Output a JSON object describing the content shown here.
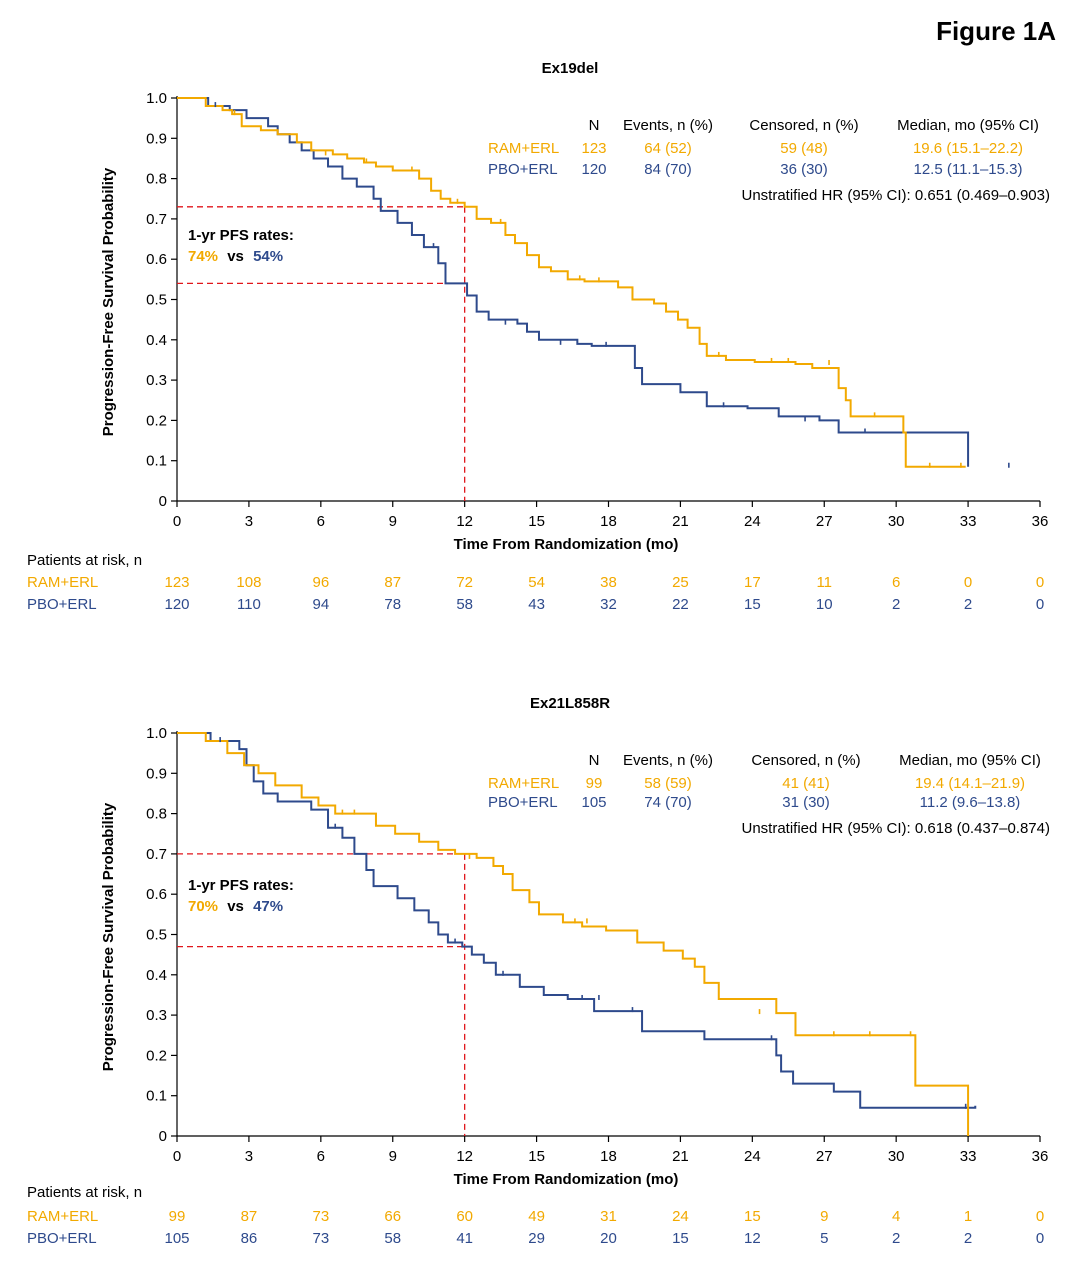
{
  "figure_label": "Figure 1A",
  "colors": {
    "ram": "#F2A900",
    "pbo": "#2E4A8C",
    "ref": "#E0161B",
    "axis": "#000000"
  },
  "common": {
    "ylabel": "Progression-Free Survival Probability",
    "xlabel": "Time From Randomization (mo)",
    "risk_title": "Patients at risk, n",
    "pfs_title": "1-yr PFS rates:",
    "vs": "vs",
    "legend_headers": {
      "n": "N",
      "events": "Events, n (%)",
      "censored": "Censored, n (%)",
      "median": "Median, mo (95% CI)"
    }
  },
  "chart_data": [
    {
      "type": "line",
      "title": "Ex19del",
      "xlim": [
        0,
        36
      ],
      "ylim": [
        0,
        1
      ],
      "x_ticks": [
        "0",
        "3",
        "6",
        "9",
        "12",
        "15",
        "18",
        "21",
        "24",
        "27",
        "30",
        "33",
        "36"
      ],
      "y_ticks": [
        "0",
        "0.1",
        "0.2",
        "0.3",
        "0.4",
        "0.5",
        "0.6",
        "0.7",
        "0.8",
        "0.9",
        "1.0"
      ],
      "ref_time": 12,
      "pfs_rates": {
        "ram": "74%",
        "pbo": "54%"
      },
      "hr_text": "Unstratified HR (95% CI): 0.651 (0.469–0.903)",
      "series": [
        {
          "name": "RAM+ERL",
          "n": "123",
          "events": "64 (52)",
          "censored": "59 (48)",
          "median": "19.6 (15.1–22.2)",
          "at_risk": [
            "123",
            "108",
            "96",
            "87",
            "72",
            "54",
            "38",
            "25",
            "17",
            "11",
            "6",
            "0",
            "0"
          ],
          "x": [
            0,
            1.2,
            1.9,
            2.3,
            2.7,
            3.5,
            4.2,
            5.0,
            5.6,
            6.5,
            7.1,
            7.8,
            8.3,
            9.0,
            10.1,
            10.6,
            11.0,
            11.4,
            12.0,
            12.5,
            13.1,
            13.7,
            14.1,
            14.6,
            15.1,
            15.6,
            16.3,
            17.0,
            18.4,
            19.0,
            19.9,
            20.4,
            20.9,
            21.3,
            21.8,
            22.1,
            22.9,
            24.1,
            25.8,
            26.5,
            27.6,
            27.9,
            28.1,
            30.3,
            30.4,
            32.9
          ],
          "y": [
            1.0,
            0.98,
            0.97,
            0.96,
            0.93,
            0.92,
            0.91,
            0.89,
            0.87,
            0.86,
            0.85,
            0.84,
            0.83,
            0.82,
            0.8,
            0.77,
            0.75,
            0.74,
            0.73,
            0.7,
            0.69,
            0.66,
            0.64,
            0.61,
            0.58,
            0.57,
            0.55,
            0.545,
            0.53,
            0.5,
            0.49,
            0.47,
            0.45,
            0.43,
            0.39,
            0.36,
            0.35,
            0.345,
            0.34,
            0.33,
            0.28,
            0.25,
            0.21,
            0.17,
            0.085,
            0.085
          ],
          "censor_x": [
            2.4,
            6.2,
            7.9,
            9.8,
            11.7,
            13.5,
            16.8,
            17.6,
            22.6,
            24.8,
            25.5,
            27.2,
            29.1,
            31.4,
            32.7
          ],
          "censor_y": [
            0.96,
            0.86,
            0.84,
            0.82,
            0.74,
            0.69,
            0.55,
            0.545,
            0.36,
            0.345,
            0.345,
            0.34,
            0.21,
            0.085,
            0.085
          ]
        },
        {
          "name": "PBO+ERL",
          "n": "120",
          "events": "84 (70)",
          "censored": "36 (30)",
          "median": "12.5 (11.1–15.3)",
          "at_risk": [
            "120",
            "110",
            "94",
            "78",
            "58",
            "43",
            "32",
            "22",
            "15",
            "10",
            "2",
            "2",
            "0"
          ],
          "x": [
            0,
            1.3,
            2.2,
            2.9,
            3.8,
            4.2,
            4.7,
            5.2,
            5.7,
            6.3,
            6.9,
            7.5,
            8.2,
            8.5,
            9.2,
            9.8,
            10.3,
            10.9,
            11.2,
            12.1,
            12.5,
            13.0,
            14.2,
            14.6,
            15.1,
            16.7,
            17.3,
            19.1,
            19.4,
            21.0,
            22.1,
            23.8,
            25.1,
            26.8,
            27.6,
            33.0
          ],
          "y": [
            1.0,
            0.98,
            0.97,
            0.95,
            0.93,
            0.91,
            0.89,
            0.87,
            0.85,
            0.83,
            0.8,
            0.78,
            0.75,
            0.72,
            0.69,
            0.66,
            0.63,
            0.59,
            0.54,
            0.51,
            0.47,
            0.45,
            0.44,
            0.42,
            0.4,
            0.39,
            0.385,
            0.33,
            0.29,
            0.27,
            0.235,
            0.23,
            0.21,
            0.2,
            0.17,
            0.085
          ],
          "censor_x": [
            1.6,
            10.7,
            13.7,
            16.0,
            17.9,
            22.8,
            26.2,
            28.7,
            34.7
          ],
          "censor_y": [
            0.98,
            0.63,
            0.44,
            0.39,
            0.385,
            0.235,
            0.2,
            0.17,
            0.085
          ]
        }
      ]
    },
    {
      "type": "line",
      "title": "Ex21L858R",
      "xlim": [
        0,
        36
      ],
      "ylim": [
        0,
        1
      ],
      "x_ticks": [
        "0",
        "3",
        "6",
        "9",
        "12",
        "15",
        "18",
        "21",
        "24",
        "27",
        "30",
        "33",
        "36"
      ],
      "y_ticks": [
        "0",
        "0.1",
        "0.2",
        "0.3",
        "0.4",
        "0.5",
        "0.6",
        "0.7",
        "0.8",
        "0.9",
        "1.0"
      ],
      "ref_time": 12,
      "pfs_rates": {
        "ram": "70%",
        "pbo": "47%"
      },
      "hr_text": "Unstratified HR (95% CI): 0.618 (0.437–0.874)",
      "series": [
        {
          "name": "RAM+ERL",
          "n": "99",
          "events": "58 (59)",
          "censored": "41 (41)",
          "median": "19.4 (14.1–21.9)",
          "at_risk": [
            "99",
            "87",
            "73",
            "66",
            "60",
            "49",
            "31",
            "24",
            "15",
            "9",
            "4",
            "1",
            "0"
          ],
          "x": [
            0,
            1.2,
            2.1,
            2.8,
            3.4,
            4.1,
            5.2,
            5.9,
            6.6,
            8.3,
            9.1,
            10.1,
            10.9,
            11.6,
            12.5,
            13.2,
            13.6,
            14.0,
            14.7,
            15.1,
            16.1,
            16.9,
            17.9,
            19.2,
            20.3,
            21.1,
            21.6,
            22.0,
            22.6,
            25.0,
            25.8,
            30.8,
            33.0
          ],
          "y": [
            1.0,
            0.98,
            0.95,
            0.92,
            0.9,
            0.87,
            0.84,
            0.82,
            0.8,
            0.77,
            0.75,
            0.73,
            0.71,
            0.7,
            0.69,
            0.67,
            0.65,
            0.61,
            0.58,
            0.55,
            0.53,
            0.52,
            0.51,
            0.48,
            0.46,
            0.44,
            0.42,
            0.38,
            0.34,
            0.305,
            0.25,
            0.125,
            0.0
          ],
          "censor_x": [
            6.9,
            7.4,
            12.2,
            16.6,
            17.1,
            24.3,
            27.4,
            28.9,
            30.6
          ],
          "censor_y": [
            0.8,
            0.8,
            0.69,
            0.53,
            0.53,
            0.305,
            0.25,
            0.25,
            0.25
          ]
        },
        {
          "name": "PBO+ERL",
          "n": "105",
          "events": "74 (70)",
          "censored": "31 (30)",
          "median": "11.2 (9.6–13.8)",
          "at_risk": [
            "105",
            "86",
            "73",
            "58",
            "41",
            "29",
            "20",
            "15",
            "12",
            "5",
            "2",
            "2",
            "0"
          ],
          "x": [
            0,
            1.4,
            2.6,
            2.9,
            3.2,
            3.6,
            4.2,
            5.6,
            6.3,
            6.9,
            7.4,
            7.9,
            8.2,
            9.2,
            9.9,
            10.5,
            10.9,
            11.3,
            11.9,
            12.3,
            12.8,
            13.3,
            14.3,
            15.3,
            16.3,
            17.4,
            19.4,
            22.0,
            25.0,
            25.2,
            25.7,
            27.4,
            28.5,
            33.3
          ],
          "y": [
            1.0,
            0.98,
            0.96,
            0.92,
            0.88,
            0.85,
            0.83,
            0.81,
            0.765,
            0.74,
            0.7,
            0.66,
            0.62,
            0.59,
            0.56,
            0.53,
            0.5,
            0.48,
            0.47,
            0.45,
            0.43,
            0.4,
            0.37,
            0.35,
            0.34,
            0.31,
            0.26,
            0.24,
            0.2,
            0.16,
            0.13,
            0.11,
            0.07,
            0.075
          ],
          "censor_x": [
            1.8,
            6.6,
            11.6,
            13.6,
            16.9,
            17.6,
            19.0,
            24.8,
            32.9
          ],
          "censor_y": [
            0.98,
            0.765,
            0.48,
            0.4,
            0.34,
            0.34,
            0.31,
            0.24,
            0.07
          ]
        }
      ]
    }
  ]
}
